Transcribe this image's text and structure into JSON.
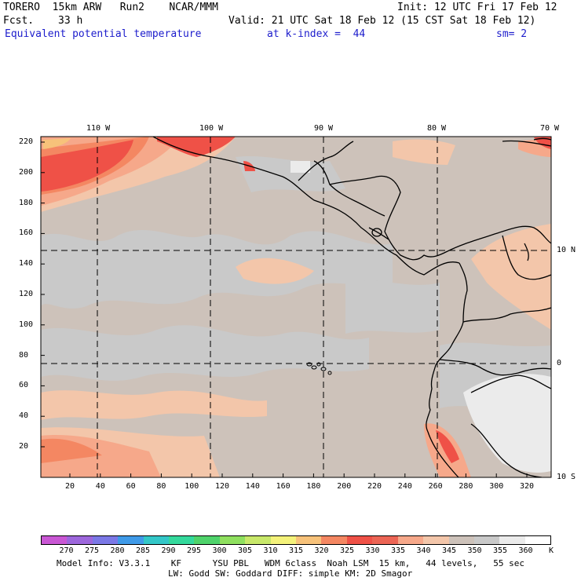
{
  "header": {
    "model": "TORERO  15km ARW   Run2    NCAR/MMM",
    "init": "Init: 12 UTC Fri 17 Feb 12",
    "fcst_label": "Fcst.",
    "fcst_value": "33 h",
    "valid": "Valid: 21 UTC Sat 18 Feb 12 (15 CST Sat 18 Feb 12)",
    "field": "Equivalent potential temperature",
    "level": "at k-index =  44",
    "smoothing": "sm= 2"
  },
  "map": {
    "top_lon_labels": [
      "110 W",
      "100 W",
      "90 W",
      "80 W",
      "70 W"
    ],
    "right_lat_labels": [
      "10 N",
      "0",
      "10 S"
    ],
    "left_y_ticks": [
      "220",
      "200",
      "180",
      "160",
      "140",
      "120",
      "100",
      "80",
      "60",
      "40",
      "20"
    ],
    "bottom_x_ticks": [
      "20",
      "40",
      "60",
      "80",
      "100",
      "120",
      "140",
      "160",
      "180",
      "200",
      "220",
      "240",
      "260",
      "280",
      "300",
      "320"
    ],
    "colors": {
      "background_field": "#cdc2ba",
      "grey_patch": "#c9c9c9",
      "light_patch": "#ebebeb",
      "peach": "#f3c6aa",
      "salmon": "#f6a88a",
      "orange_red": "#f48762",
      "red": "#ef5147",
      "yellow_orange": "#f7c27a",
      "coastline": "#000000",
      "grid_dash": "#000000"
    }
  },
  "legend": {
    "unit": "K",
    "values": [
      "270",
      "275",
      "280",
      "285",
      "290",
      "295",
      "300",
      "305",
      "310",
      "315",
      "320",
      "325",
      "330",
      "335",
      "340",
      "345",
      "350",
      "355",
      "360"
    ],
    "colors": [
      "#c957d4",
      "#9d67dc",
      "#7b78e6",
      "#3f9ae8",
      "#33c7c8",
      "#34d99c",
      "#4fd36b",
      "#8fe05f",
      "#c8e86a",
      "#f4f27a",
      "#f7c27a",
      "#f48762",
      "#ef5147",
      "#ec6555",
      "#f6a88a",
      "#f3c6aa",
      "#cdc2ba",
      "#c9c9c9",
      "#ebebeb",
      "#ffffff"
    ]
  },
  "footer": {
    "line1": "Model Info: V3.3.1    KF      YSU PBL   WDM 6class  Noah LSM  15 km,   44 levels,   55 sec",
    "line2": "LW: Godd SW: Goddard DIFF: simple KM: 2D Smagor"
  }
}
